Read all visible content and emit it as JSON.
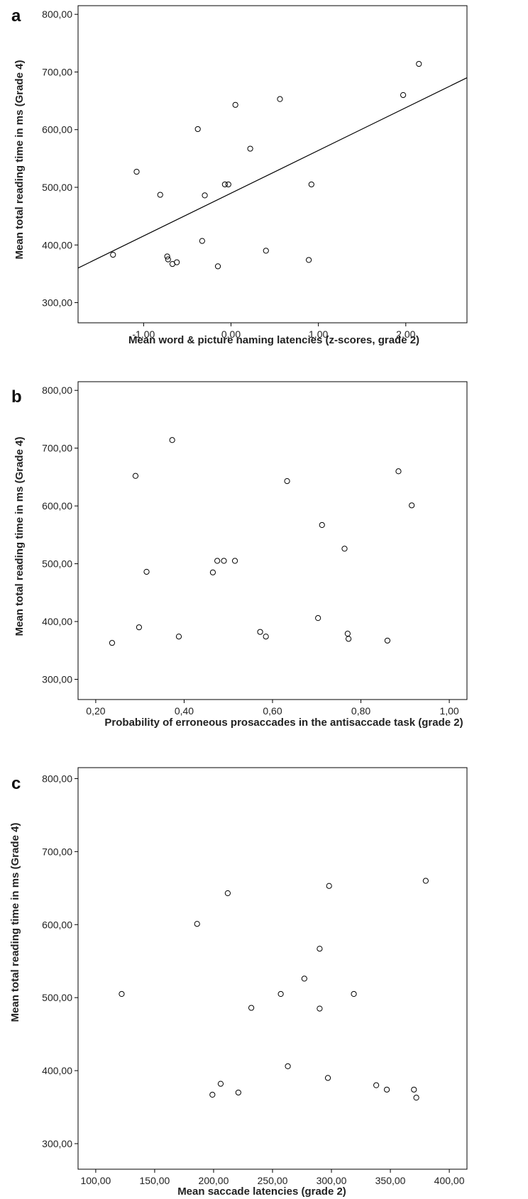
{
  "chart_data": [
    {
      "panel": "a",
      "type": "scatter",
      "xlabel": "Mean word & picture naming latencies (z-scores, grade 2)",
      "ylabel": "Mean total reading time in ms (Grade 4)",
      "xlim": [
        -1.75,
        2.7
      ],
      "ylim": [
        265,
        815
      ],
      "xticks": [
        -1.0,
        0.0,
        1.0,
        2.0
      ],
      "xtick_labels": [
        "-1,00",
        "0,00",
        "1,00",
        "2,00"
      ],
      "yticks": [
        300,
        400,
        500,
        600,
        700,
        800
      ],
      "ytick_labels": [
        "300,00",
        "400,00",
        "500,00",
        "600,00",
        "700,00",
        "800,00"
      ],
      "grid": false,
      "fit_line": {
        "x": [
          -1.75,
          2.7
        ],
        "y": [
          360,
          690
        ]
      },
      "points": [
        {
          "x": -1.35,
          "y": 383
        },
        {
          "x": -1.08,
          "y": 527
        },
        {
          "x": -0.81,
          "y": 487
        },
        {
          "x": -0.73,
          "y": 380
        },
        {
          "x": -0.72,
          "y": 375
        },
        {
          "x": -0.67,
          "y": 367
        },
        {
          "x": -0.62,
          "y": 370
        },
        {
          "x": -0.38,
          "y": 601
        },
        {
          "x": -0.33,
          "y": 407
        },
        {
          "x": -0.3,
          "y": 486
        },
        {
          "x": -0.15,
          "y": 363
        },
        {
          "x": -0.07,
          "y": 505
        },
        {
          "x": -0.03,
          "y": 505
        },
        {
          "x": 0.05,
          "y": 643
        },
        {
          "x": 0.22,
          "y": 567
        },
        {
          "x": 0.4,
          "y": 390
        },
        {
          "x": 0.56,
          "y": 653
        },
        {
          "x": 0.89,
          "y": 374
        },
        {
          "x": 0.92,
          "y": 505
        },
        {
          "x": 1.97,
          "y": 660
        },
        {
          "x": 2.15,
          "y": 714
        }
      ]
    },
    {
      "panel": "b",
      "type": "scatter",
      "xlabel": "Probability of erroneous prosaccades in the antisaccade task (grade 2)",
      "ylabel": "Mean total reading time in ms (Grade 4)",
      "xlim": [
        0.16,
        1.04
      ],
      "ylim": [
        265,
        815
      ],
      "xticks": [
        0.2,
        0.4,
        0.6,
        0.8,
        1.0
      ],
      "xtick_labels": [
        "0,20",
        "0,40",
        "0,60",
        "0,80",
        "1,00"
      ],
      "yticks": [
        300,
        400,
        500,
        600,
        700,
        800
      ],
      "ytick_labels": [
        "300,00",
        "400,00",
        "500,00",
        "600,00",
        "700,00",
        "800,00"
      ],
      "grid": false,
      "points": [
        {
          "x": 0.237,
          "y": 363
        },
        {
          "x": 0.29,
          "y": 652
        },
        {
          "x": 0.298,
          "y": 390
        },
        {
          "x": 0.315,
          "y": 486
        },
        {
          "x": 0.373,
          "y": 714
        },
        {
          "x": 0.388,
          "y": 374
        },
        {
          "x": 0.465,
          "y": 485
        },
        {
          "x": 0.475,
          "y": 505
        },
        {
          "x": 0.49,
          "y": 505
        },
        {
          "x": 0.515,
          "y": 505
        },
        {
          "x": 0.572,
          "y": 382
        },
        {
          "x": 0.585,
          "y": 374
        },
        {
          "x": 0.633,
          "y": 643
        },
        {
          "x": 0.703,
          "y": 406
        },
        {
          "x": 0.712,
          "y": 567
        },
        {
          "x": 0.763,
          "y": 526
        },
        {
          "x": 0.77,
          "y": 379
        },
        {
          "x": 0.772,
          "y": 370
        },
        {
          "x": 0.86,
          "y": 367
        },
        {
          "x": 0.885,
          "y": 660
        },
        {
          "x": 0.915,
          "y": 601
        }
      ]
    },
    {
      "panel": "c",
      "type": "scatter",
      "xlabel": "Mean saccade latencies (grade 2)",
      "ylabel": "Mean total reading time in ms (Grade 4)",
      "xlim": [
        85,
        415
      ],
      "ylim": [
        265,
        815
      ],
      "xticks": [
        100,
        150,
        200,
        250,
        300,
        350,
        400
      ],
      "xtick_labels": [
        "100,00",
        "150,00",
        "200,00",
        "250,00",
        "300,00",
        "350,00",
        "400,00"
      ],
      "yticks": [
        300,
        400,
        500,
        600,
        700,
        800
      ],
      "ytick_labels": [
        "300,00",
        "400,00",
        "500,00",
        "600,00",
        "700,00",
        "800,00"
      ],
      "grid": false,
      "points": [
        {
          "x": 122,
          "y": 505
        },
        {
          "x": 186,
          "y": 601
        },
        {
          "x": 199,
          "y": 367
        },
        {
          "x": 206,
          "y": 382
        },
        {
          "x": 212,
          "y": 643
        },
        {
          "x": 221,
          "y": 370
        },
        {
          "x": 232,
          "y": 486
        },
        {
          "x": 257,
          "y": 505
        },
        {
          "x": 263,
          "y": 406
        },
        {
          "x": 277,
          "y": 526
        },
        {
          "x": 290,
          "y": 567
        },
        {
          "x": 290,
          "y": 485
        },
        {
          "x": 297,
          "y": 390
        },
        {
          "x": 298,
          "y": 653
        },
        {
          "x": 319,
          "y": 505
        },
        {
          "x": 338,
          "y": 380
        },
        {
          "x": 347,
          "y": 374
        },
        {
          "x": 370,
          "y": 374
        },
        {
          "x": 372,
          "y": 363
        },
        {
          "x": 380,
          "y": 660
        }
      ]
    }
  ]
}
